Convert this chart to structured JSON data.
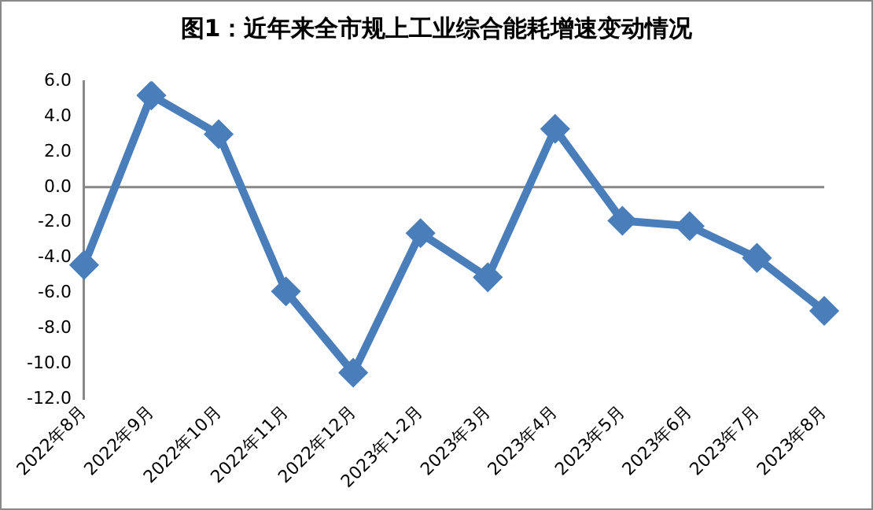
{
  "chart_data": {
    "type": "line",
    "title": "图1：近年来全市规上工业综合能耗增速变动情况",
    "categories": [
      "2022年8月",
      "2022年9月",
      "2022年10月",
      "2022年11月",
      "2022年12月",
      "2023年1-2月",
      "2023年3月",
      "2023年4月",
      "2023年5月",
      "2023年6月",
      "2023年7月",
      "2023年8月"
    ],
    "series": [
      {
        "color": "#4a7ebb",
        "values": [
          -4.4,
          5.2,
          3.0,
          -5.9,
          -10.5,
          -2.6,
          -5.1,
          3.3,
          -1.9,
          -2.2,
          -4.0,
          -7.0
        ]
      }
    ],
    "ylim": [
      -12,
      6
    ],
    "yticks": [
      {
        "value": -12,
        "label": "-12.0"
      },
      {
        "value": -10,
        "label": "-10.0"
      },
      {
        "value": -8,
        "label": "-8.0"
      },
      {
        "value": -6,
        "label": "-6.0"
      },
      {
        "value": -4,
        "label": "-4.0"
      },
      {
        "value": -2,
        "label": "-2.0"
      },
      {
        "value": 0,
        "label": "0.0"
      },
      {
        "value": 2,
        "label": "2.0"
      },
      {
        "value": 4,
        "label": "4.0"
      },
      {
        "value": 6,
        "label": "6.0"
      }
    ],
    "ref_lines": [
      {
        "axis": "y",
        "value": 0,
        "color": "#888888"
      }
    ],
    "grid": false,
    "legend": false,
    "marker": "diamond",
    "line_style": "solid"
  }
}
